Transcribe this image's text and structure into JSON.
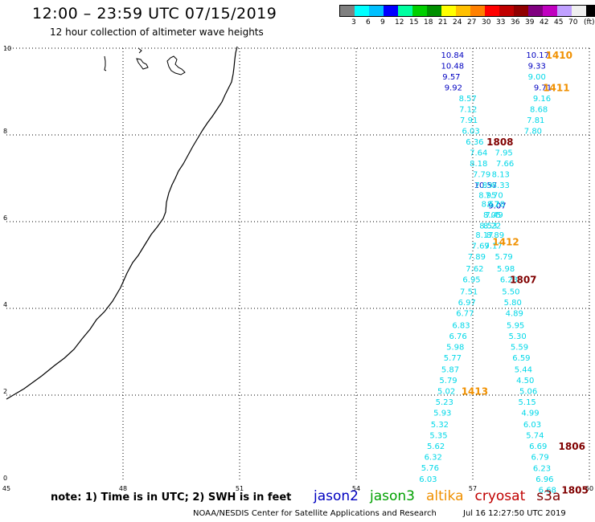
{
  "header": {
    "title": "12:00 – 23:59 UTC 07/15/2019",
    "subtitle": "12 hour collection of altimeter wave heights"
  },
  "colorbar": {
    "colors": [
      "#808080",
      "#00ffff",
      "#00c0ff",
      "#0000ff",
      "#00ffa0",
      "#00d000",
      "#009000",
      "#ffff00",
      "#ffc000",
      "#ff8000",
      "#ff0000",
      "#c00000",
      "#900000",
      "#800080",
      "#c000c0",
      "#c0a0ff",
      "#f0f0f0",
      "#000000"
    ],
    "labels": [
      "3",
      "6",
      "9",
      "12",
      "15",
      "18",
      "21",
      "24",
      "27",
      "30",
      "33",
      "36",
      "39",
      "42",
      "45",
      "70",
      "(ft)"
    ]
  },
  "axes": {
    "xlim": [
      45,
      60
    ],
    "ylim": [
      0,
      10
    ],
    "xticks": [
      "45",
      "48",
      "51",
      "54",
      "57",
      "60"
    ],
    "yticks": [
      "0",
      "2",
      "4",
      "6",
      "8",
      "10"
    ]
  },
  "chart_data": {
    "type": "scatter",
    "xlabel": "",
    "ylabel": "",
    "xlim": [
      45,
      60
    ],
    "ylim": [
      0,
      10
    ],
    "grid": true,
    "series": [
      {
        "name": "jason2",
        "color": "#0000c0",
        "points": [
          [
            56.48,
            9.85,
            "10.84"
          ],
          [
            56.48,
            9.6,
            "10.48"
          ],
          [
            56.45,
            9.35,
            "9.57"
          ],
          [
            56.5,
            9.1,
            "9.92"
          ],
          [
            57.33,
            6.85,
            "10.57"
          ],
          [
            57.63,
            6.38,
            "9.07"
          ],
          [
            58.67,
            9.85,
            "10.17"
          ],
          [
            58.65,
            9.6,
            "9.33"
          ],
          [
            58.8,
            9.1,
            "9.71"
          ]
        ]
      },
      {
        "name": "jason3",
        "color": "#00a000",
        "points": []
      },
      {
        "name": "altika",
        "color": "#f09000",
        "points": []
      },
      {
        "name": "cryosat",
        "color": "#c00000",
        "points": []
      },
      {
        "name": "s3a",
        "color": "#800000",
        "points": []
      },
      {
        "name": "track-1410",
        "color": "#00d8e8",
        "points": [
          [
            58.65,
            9.35,
            "9.00"
          ],
          [
            58.78,
            8.85,
            "9.16"
          ],
          [
            58.7,
            8.6,
            "8.68"
          ],
          [
            58.62,
            8.35,
            "7.81"
          ],
          [
            58.55,
            8.1,
            "7.80"
          ],
          [
            57.8,
            7.6,
            "7.95"
          ],
          [
            57.83,
            7.35,
            "7.66"
          ],
          [
            57.72,
            7.1,
            "8.13"
          ],
          [
            57.72,
            6.85,
            "8.33"
          ],
          [
            57.55,
            6.62,
            "7.70"
          ],
          [
            57.6,
            6.42,
            "8.28"
          ],
          [
            57.55,
            6.17,
            "7.49"
          ],
          [
            57.5,
            5.92,
            "8.22"
          ],
          [
            57.58,
            5.7,
            "8.89"
          ],
          [
            57.53,
            5.45,
            "7.17"
          ],
          [
            57.8,
            5.2,
            "5.79"
          ],
          [
            57.85,
            4.93,
            "5.98"
          ],
          [
            57.93,
            4.68,
            "6.23"
          ],
          [
            57.98,
            4.4,
            "5.50"
          ],
          [
            58.03,
            4.15,
            "5.80"
          ],
          [
            58.07,
            3.9,
            "4.89"
          ],
          [
            58.1,
            3.62,
            "5.95"
          ],
          [
            58.15,
            3.37,
            "5.30"
          ],
          [
            58.2,
            3.12,
            "5.59"
          ],
          [
            58.25,
            2.87,
            "6.59"
          ],
          [
            58.3,
            2.6,
            "5.44"
          ],
          [
            58.35,
            2.35,
            "4.50"
          ],
          [
            58.43,
            2.1,
            "5.06"
          ],
          [
            58.4,
            1.85,
            "5.15"
          ],
          [
            58.48,
            1.6,
            "4.99"
          ],
          [
            58.53,
            1.33,
            "6.03"
          ],
          [
            58.6,
            1.08,
            "5.74"
          ],
          [
            58.68,
            0.83,
            "6.69"
          ],
          [
            58.73,
            0.58,
            "6.79"
          ],
          [
            58.78,
            0.32,
            "6.23"
          ],
          [
            58.85,
            0.07,
            "6.96"
          ],
          [
            58.92,
            -0.18,
            "6.68"
          ]
        ]
      },
      {
        "name": "track-1411",
        "color": "#00d8e8",
        "points": [
          [
            56.87,
            8.85,
            "8.57"
          ],
          [
            56.88,
            8.6,
            "7.12"
          ],
          [
            56.9,
            8.35,
            "7.91"
          ],
          [
            56.95,
            8.1,
            "6.03"
          ],
          [
            57.05,
            7.85,
            "6.36"
          ],
          [
            57.15,
            7.6,
            "7.64"
          ],
          [
            57.15,
            7.35,
            "8.18"
          ],
          [
            57.23,
            7.1,
            "7.79"
          ],
          [
            57.28,
            6.85,
            "7.89"
          ],
          [
            57.38,
            6.62,
            "8.95"
          ],
          [
            57.45,
            6.42,
            "8.57"
          ],
          [
            57.5,
            6.17,
            "8.05"
          ],
          [
            57.4,
            5.92,
            "8.53"
          ],
          [
            57.3,
            5.7,
            "8.17"
          ],
          [
            57.2,
            5.45,
            "7.69"
          ],
          [
            57.1,
            5.2,
            "7.89"
          ],
          [
            57.05,
            4.93,
            "7.62"
          ],
          [
            56.97,
            4.68,
            "6.95"
          ],
          [
            56.9,
            4.4,
            "7.51"
          ],
          [
            56.85,
            4.15,
            "6.97"
          ],
          [
            56.8,
            3.9,
            "6.77"
          ],
          [
            56.7,
            3.62,
            "6.83"
          ],
          [
            56.62,
            3.37,
            "6.76"
          ],
          [
            56.55,
            3.12,
            "5.98"
          ],
          [
            56.48,
            2.87,
            "5.77"
          ],
          [
            56.42,
            2.6,
            "5.87"
          ],
          [
            56.37,
            2.35,
            "5.79"
          ],
          [
            56.32,
            2.1,
            "5.02"
          ],
          [
            56.27,
            1.85,
            "5.23"
          ],
          [
            56.22,
            1.6,
            "5.93"
          ],
          [
            56.15,
            1.33,
            "5.32"
          ],
          [
            56.12,
            1.08,
            "5.35"
          ],
          [
            56.05,
            0.83,
            "5.62"
          ],
          [
            55.98,
            0.58,
            "6.32"
          ],
          [
            55.9,
            0.33,
            "5.76"
          ],
          [
            55.85,
            0.07,
            "6.03"
          ]
        ]
      }
    ],
    "track_labels": [
      {
        "text": "1410",
        "x": 59.22,
        "y": 9.85,
        "color": "#f09000"
      },
      {
        "text": "1411",
        "x": 59.15,
        "y": 9.1,
        "color": "#f09000"
      },
      {
        "text": "1808",
        "x": 57.7,
        "y": 7.85,
        "color": "#800000"
      },
      {
        "text": "1412",
        "x": 57.85,
        "y": 5.55,
        "color": "#f09000"
      },
      {
        "text": "1807",
        "x": 58.3,
        "y": 4.68,
        "color": "#800000"
      },
      {
        "text": "1413",
        "x": 57.05,
        "y": 2.1,
        "color": "#f09000"
      },
      {
        "text": "1806",
        "x": 59.55,
        "y": 0.83,
        "color": "#800000"
      },
      {
        "text": "1805",
        "x": 59.63,
        "y": -0.18,
        "color": "#800000"
      }
    ]
  },
  "legend": {
    "note": "note: 1) Time is in UTC; 2) SWH is in feet",
    "missions": [
      {
        "name": "jason2",
        "color": "#0000c0"
      },
      {
        "name": "jason3",
        "color": "#00a000"
      },
      {
        "name": "altika",
        "color": "#f09000"
      },
      {
        "name": "cryosat",
        "color": "#c00000"
      },
      {
        "name": "s3a",
        "color": "#800000"
      }
    ]
  },
  "footer": {
    "credit": "NOAA/NESDIS Center for Satellite Applications and Research",
    "timestamp": "Jul 16 12:27:50 UTC 2019"
  }
}
